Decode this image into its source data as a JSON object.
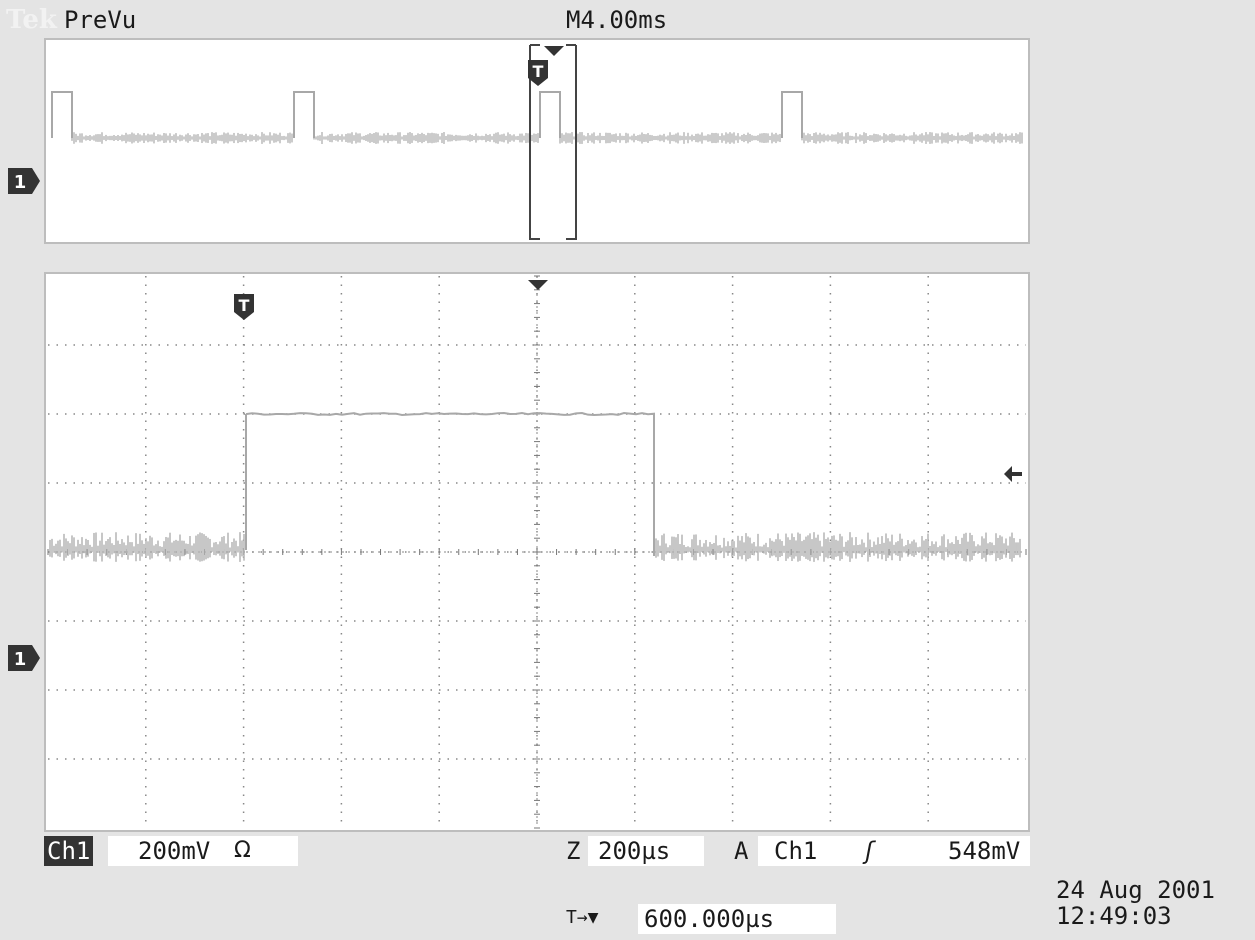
{
  "header": {
    "brand": "Tek",
    "mode_label": "PreVu",
    "main_timebase": "M4.00ms"
  },
  "preview": {
    "trigger_symbol": "T",
    "channel_marker": "1"
  },
  "main_display": {
    "trigger_symbol": "T",
    "channel_marker": "1",
    "grid": {
      "divisions_x": 10,
      "divisions_y": 8
    }
  },
  "readouts": {
    "channel_tag": "Ch1",
    "channel_scale": "200mV",
    "impedance_symbol": "Ω",
    "zoom_prefix": "Z",
    "zoom_timebase": "200µs",
    "trigger_mode": "A",
    "trigger_source": "Ch1",
    "trigger_slope_symbol": "ʃ",
    "trigger_level": "548mV",
    "position_prefix_symbol": "T→▼",
    "horizontal_position": "600.000µs"
  },
  "timestamp": {
    "date": "24 Aug 2001",
    "time": "12:49:03"
  },
  "colors": {
    "background": "#e4e4e4",
    "display": "#ffffff",
    "trace": "#b0b0b0",
    "grid": "#888888",
    "marker": "#333333"
  }
}
